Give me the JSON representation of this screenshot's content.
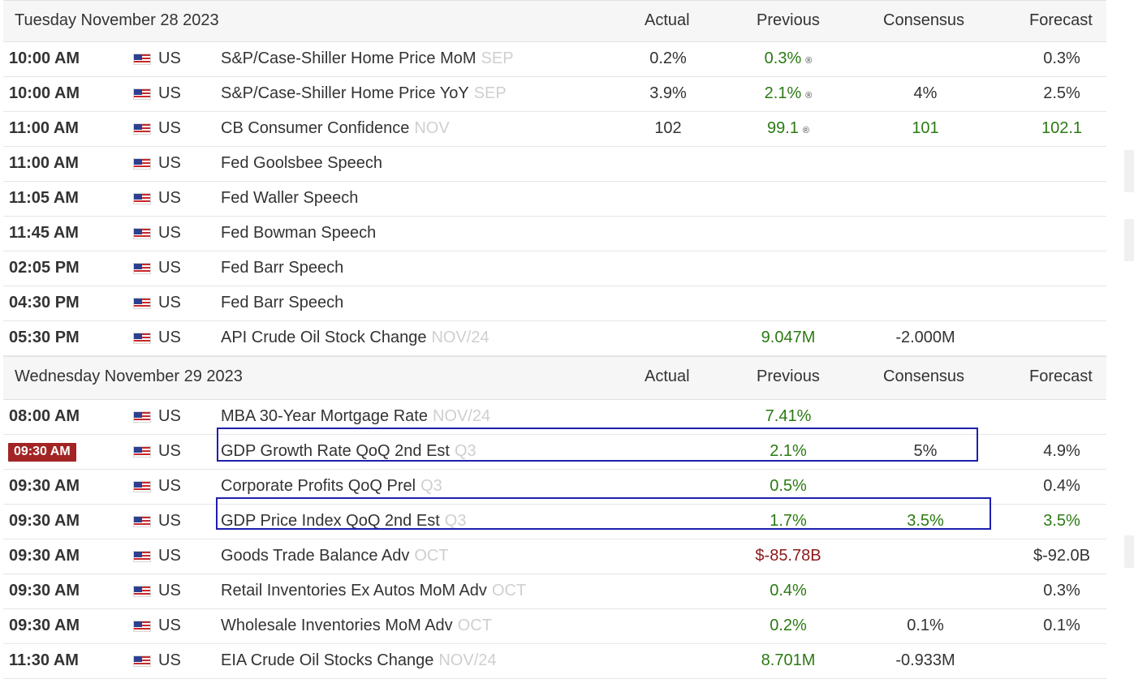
{
  "days": [
    {
      "date": "Tuesday November 28 2023",
      "headers": {
        "actual": "Actual",
        "previous": "Previous",
        "consensus": "Consensus",
        "forecast": "Forecast"
      },
      "events": [
        {
          "time": "10:00 AM",
          "country": "US",
          "event": "S&P/Case-Shiller Home Price MoM",
          "period": "SEP",
          "actual": "0.2%",
          "previous": "0.3%",
          "prev_rev": "®",
          "consensus": "",
          "forecast": "0.3%"
        },
        {
          "time": "10:00 AM",
          "country": "US",
          "event": "S&P/Case-Shiller Home Price YoY",
          "period": "SEP",
          "actual": "3.9%",
          "previous": "2.1%",
          "prev_rev": "®",
          "consensus": "4%",
          "forecast": "2.5%"
        },
        {
          "time": "11:00 AM",
          "country": "US",
          "event": "CB Consumer Confidence",
          "period": "NOV",
          "actual": "102",
          "previous": "99.1",
          "prev_rev": "®",
          "consensus": "101",
          "forecast": "102.1"
        },
        {
          "time": "11:00 AM",
          "country": "US",
          "event": "Fed Goolsbee Speech",
          "period": "",
          "actual": "",
          "previous": "",
          "prev_rev": "",
          "consensus": "",
          "forecast": ""
        },
        {
          "time": "11:05 AM",
          "country": "US",
          "event": "Fed Waller Speech",
          "period": "",
          "actual": "",
          "previous": "",
          "prev_rev": "",
          "consensus": "",
          "forecast": ""
        },
        {
          "time": "11:45 AM",
          "country": "US",
          "event": "Fed Bowman Speech",
          "period": "",
          "actual": "",
          "previous": "",
          "prev_rev": "",
          "consensus": "",
          "forecast": ""
        },
        {
          "time": "02:05 PM",
          "country": "US",
          "event": "Fed Barr Speech",
          "period": "",
          "actual": "",
          "previous": "",
          "prev_rev": "",
          "consensus": "",
          "forecast": ""
        },
        {
          "time": "04:30 PM",
          "country": "US",
          "event": "Fed Barr Speech",
          "period": "",
          "actual": "",
          "previous": "",
          "prev_rev": "",
          "consensus": "",
          "forecast": ""
        },
        {
          "time": "05:30 PM",
          "country": "US",
          "event": "API Crude Oil Stock Change",
          "period": "NOV/24",
          "actual": "",
          "previous": "9.047M",
          "prev_rev": "",
          "consensus": "-2.000M",
          "forecast": ""
        }
      ]
    },
    {
      "date": "Wednesday November 29 2023",
      "headers": {
        "actual": "Actual",
        "previous": "Previous",
        "consensus": "Consensus",
        "forecast": "Forecast"
      },
      "events": [
        {
          "time": "08:00 AM",
          "country": "US",
          "event": "MBA 30-Year Mortgage Rate",
          "period": "NOV/24",
          "actual": "",
          "previous": "7.41%",
          "prev_rev": "",
          "consensus": "",
          "forecast": ""
        },
        {
          "time": "09:30 AM",
          "country": "US",
          "event": "GDP Growth Rate QoQ 2nd Est",
          "period": "Q3",
          "actual": "",
          "previous": "2.1%",
          "prev_rev": "",
          "consensus": "5%",
          "forecast": "4.9%",
          "highlight": true
        },
        {
          "time": "09:30 AM",
          "country": "US",
          "event": "Corporate Profits QoQ Prel",
          "period": "Q3",
          "actual": "",
          "previous": "0.5%",
          "prev_rev": "",
          "consensus": "",
          "forecast": "0.4%"
        },
        {
          "time": "09:30 AM",
          "country": "US",
          "event": "GDP Price Index QoQ 2nd Est",
          "period": "Q3",
          "actual": "",
          "previous": "1.7%",
          "prev_rev": "",
          "consensus": "3.5%",
          "forecast": "3.5%"
        },
        {
          "time": "09:30 AM",
          "country": "US",
          "event": "Goods Trade Balance Adv",
          "period": "OCT",
          "actual": "",
          "previous": "$-85.78B",
          "prev_rev": "",
          "consensus": "",
          "forecast": "$-92.0B"
        },
        {
          "time": "09:30 AM",
          "country": "US",
          "event": "Retail Inventories Ex Autos MoM Adv",
          "period": "OCT",
          "actual": "",
          "previous": "0.4%",
          "prev_rev": "",
          "consensus": "",
          "forecast": "0.3%"
        },
        {
          "time": "09:30 AM",
          "country": "US",
          "event": "Wholesale Inventories MoM Adv",
          "period": "OCT",
          "actual": "",
          "previous": "0.2%",
          "prev_rev": "",
          "consensus": "0.1%",
          "forecast": "0.1%"
        },
        {
          "time": "11:30 AM",
          "country": "US",
          "event": "EIA Crude Oil Stocks Change",
          "period": "NOV/24",
          "actual": "",
          "previous": "8.701M",
          "prev_rev": "",
          "consensus": "-0.933M",
          "forecast": ""
        }
      ]
    }
  ],
  "colors": {
    "green": "#2b7a12",
    "red": "#8b1a1a",
    "highlight_time": "#a32424",
    "box": "#1f1fae"
  }
}
